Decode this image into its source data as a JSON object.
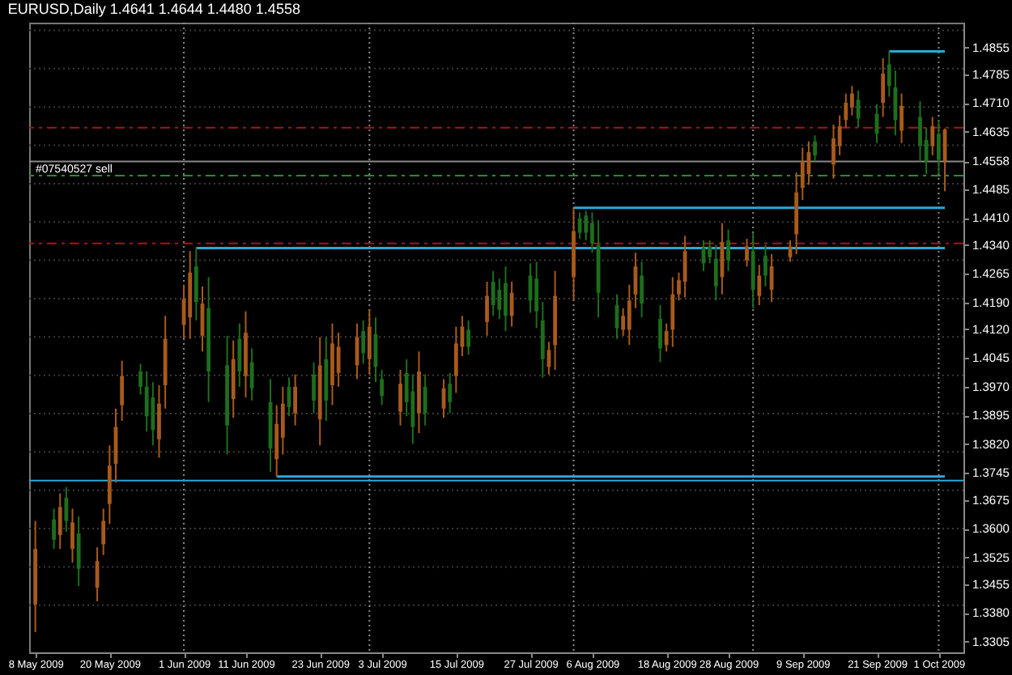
{
  "chart_data": {
    "type": "candlestick",
    "title": "EURUSD,Daily 1.4641 1.4644 1.4480 1.4558",
    "x": [
      "2009-05-08",
      "2009-05-11",
      "2009-05-12",
      "2009-05-13",
      "2009-05-14",
      "2009-05-15",
      "2009-05-18",
      "2009-05-19",
      "2009-05-20",
      "2009-05-21",
      "2009-05-22",
      "2009-05-25",
      "2009-05-26",
      "2009-05-27",
      "2009-05-28",
      "2009-05-29",
      "2009-06-01",
      "2009-06-02",
      "2009-06-03",
      "2009-06-04",
      "2009-06-05",
      "2009-06-08",
      "2009-06-09",
      "2009-06-10",
      "2009-06-11",
      "2009-06-12",
      "2009-06-15",
      "2009-06-16",
      "2009-06-17",
      "2009-06-18",
      "2009-06-19",
      "2009-06-22",
      "2009-06-23",
      "2009-06-24",
      "2009-06-25",
      "2009-06-26",
      "2009-06-29",
      "2009-06-30",
      "2009-07-01",
      "2009-07-02",
      "2009-07-03",
      "2009-07-06",
      "2009-07-07",
      "2009-07-08",
      "2009-07-09",
      "2009-07-10",
      "2009-07-13",
      "2009-07-14",
      "2009-07-15",
      "2009-07-16",
      "2009-07-17",
      "2009-07-20",
      "2009-07-21",
      "2009-07-22",
      "2009-07-23",
      "2009-07-24",
      "2009-07-27",
      "2009-07-28",
      "2009-07-29",
      "2009-07-30",
      "2009-07-31",
      "2009-08-03",
      "2009-08-04",
      "2009-08-05",
      "2009-08-06",
      "2009-08-07",
      "2009-08-10",
      "2009-08-11",
      "2009-08-12",
      "2009-08-13",
      "2009-08-14",
      "2009-08-17",
      "2009-08-18",
      "2009-08-19",
      "2009-08-20",
      "2009-08-21",
      "2009-08-24",
      "2009-08-25",
      "2009-08-26",
      "2009-08-27",
      "2009-08-28",
      "2009-08-31",
      "2009-09-01",
      "2009-09-02",
      "2009-09-03",
      "2009-09-04",
      "2009-09-07",
      "2009-09-08",
      "2009-09-09",
      "2009-09-10",
      "2009-09-11",
      "2009-09-14",
      "2009-09-15",
      "2009-09-16",
      "2009-09-17",
      "2009-09-18",
      "2009-09-21",
      "2009-09-22",
      "2009-09-23",
      "2009-09-24",
      "2009-09-25",
      "2009-09-28",
      "2009-09-29",
      "2009-09-30",
      "2009-10-01",
      "2009-10-02"
    ],
    "ohlc": [
      [
        1.3547,
        1.362,
        1.333,
        1.3402
      ],
      [
        1.3571,
        1.3652,
        1.3547,
        1.3624
      ],
      [
        1.3656,
        1.3692,
        1.3547,
        1.3583
      ],
      [
        1.362,
        1.3708,
        1.3591,
        1.368
      ],
      [
        1.3616,
        1.3652,
        1.3511,
        1.3547
      ],
      [
        1.3495,
        1.3632,
        1.345,
        1.3587
      ],
      [
        1.3515,
        1.3551,
        1.341,
        1.3446
      ],
      [
        1.362,
        1.3652,
        1.3531,
        1.3559
      ],
      [
        1.3764,
        1.3817,
        1.3612,
        1.3664
      ],
      [
        1.3865,
        1.3913,
        1.372,
        1.3769
      ],
      [
        1.3998,
        1.4038,
        1.3881,
        1.3922
      ],
      [
        1.397,
        1.403,
        1.395,
        1.401
      ],
      [
        1.3893,
        1.401,
        1.3853,
        1.397
      ],
      [
        1.3857,
        1.3982,
        1.3817,
        1.3942
      ],
      [
        1.3926,
        1.3974,
        1.3785,
        1.3833
      ],
      [
        1.4095,
        1.4155,
        1.3913,
        1.3974
      ],
      [
        1.4199,
        1.4236,
        1.4095,
        1.4131
      ],
      [
        1.4268,
        1.4324,
        1.4095,
        1.4151
      ],
      [
        1.4191,
        1.4332,
        1.4143,
        1.4284
      ],
      [
        1.4187,
        1.4232,
        1.4062,
        1.4103
      ],
      [
        1.401,
        1.4256,
        1.393,
        1.4175
      ],
      [
        1.3869,
        1.4103,
        1.3793,
        1.4026
      ],
      [
        1.4042,
        1.4091,
        1.3889,
        1.3938
      ],
      [
        1.401,
        1.4135,
        1.397,
        1.4095
      ],
      [
        1.4111,
        1.4167,
        1.3942,
        1.3998
      ],
      [
        1.3966,
        1.407,
        1.3934,
        1.4034
      ],
      [
        1.3809,
        1.399,
        1.3748,
        1.393
      ],
      [
        1.3873,
        1.3922,
        1.3736,
        1.3781
      ],
      [
        1.3926,
        1.397,
        1.3793,
        1.3837
      ],
      [
        1.3917,
        1.3994,
        1.3893,
        1.397
      ],
      [
        1.397,
        1.4002,
        1.3869,
        1.3901
      ],
      [
        1.3934,
        1.4034,
        1.3901,
        1.4002
      ],
      [
        1.4026,
        1.4099,
        1.3817,
        1.3885
      ],
      [
        1.3934,
        1.4099,
        1.3881,
        1.4042
      ],
      [
        1.4083,
        1.4135,
        1.3922,
        1.3974
      ],
      [
        1.4074,
        1.4111,
        1.397,
        1.4006
      ],
      [
        1.4099,
        1.4135,
        1.399,
        1.4026
      ],
      [
        1.4058,
        1.4143,
        1.403,
        1.4115
      ],
      [
        1.4127,
        1.4171,
        1.4002,
        1.4042
      ],
      [
        1.4022,
        1.4151,
        1.3982,
        1.4107
      ],
      [
        1.3946,
        1.4014,
        1.3922,
        1.399
      ],
      [
        1.3978,
        1.4014,
        1.3869,
        1.3905
      ],
      [
        1.393,
        1.4042,
        1.3893,
        1.4006
      ],
      [
        1.3865,
        1.4002,
        1.3821,
        1.3958
      ],
      [
        1.401,
        1.4062,
        1.3849,
        1.3901
      ],
      [
        1.3901,
        1.4002,
        1.3869,
        1.397
      ],
      [
        1.3966,
        1.399,
        1.3889,
        1.3913
      ],
      [
        1.393,
        1.4006,
        1.3901,
        1.3978
      ],
      [
        1.4083,
        1.4127,
        1.3954,
        1.3998
      ],
      [
        1.4127,
        1.4155,
        1.405,
        1.4074
      ],
      [
        1.4074,
        1.4143,
        1.4054,
        1.4119
      ],
      [
        1.4207,
        1.4244,
        1.4103,
        1.4139
      ],
      [
        1.4183,
        1.4272,
        1.4155,
        1.4244
      ],
      [
        1.4171,
        1.4252,
        1.4147,
        1.4223
      ],
      [
        1.4155,
        1.4284,
        1.4115,
        1.424
      ],
      [
        1.4215,
        1.4244,
        1.4127,
        1.4155
      ],
      [
        1.4195,
        1.4292,
        1.4163,
        1.426
      ],
      [
        1.4167,
        1.4296,
        1.4123,
        1.4252
      ],
      [
        1.4042,
        1.4191,
        1.3994,
        1.4143
      ],
      [
        1.4066,
        1.4087,
        1.4002,
        1.4022
      ],
      [
        1.4207,
        1.4272,
        1.4014,
        1.4079
      ],
      [
        1.4376,
        1.4437,
        1.4195,
        1.4256
      ],
      [
        1.4372,
        1.4425,
        1.4356,
        1.4409
      ],
      [
        1.4372,
        1.4429,
        1.4352,
        1.4417
      ],
      [
        1.4344,
        1.4425,
        1.432,
        1.4397
      ],
      [
        1.4215,
        1.4405,
        1.4151,
        1.434
      ],
      [
        1.4123,
        1.4211,
        1.4095,
        1.4183
      ],
      [
        1.4155,
        1.4175,
        1.4103,
        1.4119
      ],
      [
        1.4195,
        1.4236,
        1.4079,
        1.4119
      ],
      [
        1.4284,
        1.432,
        1.4175,
        1.4211
      ],
      [
        1.4187,
        1.4296,
        1.4151,
        1.426
      ],
      [
        1.407,
        1.4183,
        1.4034,
        1.4147
      ],
      [
        1.4115,
        1.4135,
        1.4062,
        1.4079
      ],
      [
        1.4211,
        1.4256,
        1.4074,
        1.4119
      ],
      [
        1.4248,
        1.4268,
        1.4195,
        1.4211
      ],
      [
        1.4324,
        1.4364,
        1.4203,
        1.4244
      ],
      [
        1.4292,
        1.4352,
        1.4272,
        1.4332
      ],
      [
        1.4308,
        1.4352,
        1.4292,
        1.4336
      ],
      [
        1.4232,
        1.434,
        1.4195,
        1.4304
      ],
      [
        1.4348,
        1.4397,
        1.4211,
        1.4256
      ],
      [
        1.43,
        1.438,
        1.4272,
        1.4352
      ],
      [
        1.4336,
        1.4356,
        1.4284,
        1.43
      ],
      [
        1.4223,
        1.4372,
        1.4175,
        1.4324
      ],
      [
        1.426,
        1.4288,
        1.4183,
        1.4207
      ],
      [
        1.426,
        1.434,
        1.4232,
        1.4312
      ],
      [
        1.4284,
        1.4316,
        1.4191,
        1.4223
      ],
      [
        1.4336,
        1.4352,
        1.4296,
        1.4308
      ],
      [
        1.4477,
        1.4529,
        1.4316,
        1.4368
      ],
      [
        1.4558,
        1.4594,
        1.4457,
        1.4489
      ],
      [
        1.4582,
        1.461,
        1.4497,
        1.4525
      ],
      [
        1.4574,
        1.4626,
        1.4558,
        1.461
      ],
      [
        1.4618,
        1.4654,
        1.4513,
        1.455
      ],
      [
        1.465,
        1.4678,
        1.4574,
        1.4598
      ],
      [
        1.4711,
        1.4735,
        1.4646,
        1.4666
      ],
      [
        1.4735,
        1.4755,
        1.4678,
        1.4699
      ],
      [
        1.467,
        1.4743,
        1.4646,
        1.4719
      ],
      [
        1.463,
        1.4707,
        1.4606,
        1.4682
      ],
      [
        1.4787,
        1.4827,
        1.4674,
        1.4711
      ],
      [
        1.4755,
        1.4845,
        1.4727,
        1.4811
      ],
      [
        1.4666,
        1.4795,
        1.4626,
        1.4751
      ],
      [
        1.4703,
        1.4735,
        1.4606,
        1.4638
      ],
      [
        1.4598,
        1.4715,
        1.4558,
        1.4674
      ],
      [
        1.4558,
        1.4646,
        1.4525,
        1.4614
      ],
      [
        1.465,
        1.4674,
        1.4574,
        1.4598
      ],
      [
        1.4562,
        1.4666,
        1.4525,
        1.463
      ],
      [
        1.4641,
        1.4644,
        1.448,
        1.4558
      ]
    ],
    "colors": [
      "#a85a1c",
      "#1d6e1d",
      "#a85a1c",
      "#1d6e1d",
      "#a85a1c",
      "#1d6e1d",
      "#a85a1c",
      "#a85a1c",
      "#a85a1c",
      "#a85a1c",
      "#a85a1c",
      "#1d6e1d",
      "#1d6e1d",
      "#1d6e1d",
      "#a85a1c",
      "#a85a1c",
      "#a85a1c",
      "#a85a1c",
      "#1d6e1d",
      "#a85a1c",
      "#1d6e1d",
      "#1d6e1d",
      "#a85a1c",
      "#1d6e1d",
      "#a85a1c",
      "#1d6e1d",
      "#1d6e1d",
      "#a85a1c",
      "#a85a1c",
      "#1d6e1d",
      "#a85a1c",
      "#1d6e1d",
      "#a85a1c",
      "#1d6e1d",
      "#a85a1c",
      "#a85a1c",
      "#a85a1c",
      "#1d6e1d",
      "#a85a1c",
      "#1d6e1d",
      "#1d6e1d",
      "#a85a1c",
      "#1d6e1d",
      "#1d6e1d",
      "#a85a1c",
      "#1d6e1d",
      "#a85a1c",
      "#1d6e1d",
      "#a85a1c",
      "#a85a1c",
      "#1d6e1d",
      "#a85a1c",
      "#1d6e1d",
      "#1d6e1d",
      "#1d6e1d",
      "#a85a1c",
      "#1d6e1d",
      "#1d6e1d",
      "#1d6e1d",
      "#a85a1c",
      "#a85a1c",
      "#a85a1c",
      "#1d6e1d",
      "#1d6e1d",
      "#1d6e1d",
      "#1d6e1d",
      "#1d6e1d",
      "#a85a1c",
      "#a85a1c",
      "#a85a1c",
      "#1d6e1d",
      "#1d6e1d",
      "#a85a1c",
      "#a85a1c",
      "#a85a1c",
      "#a85a1c",
      "#1d6e1d",
      "#1d6e1d",
      "#1d6e1d",
      "#a85a1c",
      "#1d6e1d",
      "#a85a1c",
      "#1d6e1d",
      "#a85a1c",
      "#1d6e1d",
      "#a85a1c",
      "#a85a1c",
      "#a85a1c",
      "#a85a1c",
      "#a85a1c",
      "#1d6e1d",
      "#a85a1c",
      "#a85a1c",
      "#a85a1c",
      "#a85a1c",
      "#1d6e1d",
      "#1d6e1d",
      "#a85a1c",
      "#1d6e1d",
      "#1d6e1d",
      "#a85a1c",
      "#1d6e1d",
      "#1d6e1d",
      "#a85a1c",
      "#1d6e1d",
      "#a85a1c"
    ],
    "series": [
      {
        "type": "line",
        "color": "#2aa8d8",
        "x": [
          "2009-09-23",
          "2009-10-02"
        ],
        "values": [
          1.4845,
          1.4845
        ]
      },
      {
        "type": "line",
        "color": "#2aa8d8",
        "x": [
          "2009-08-03",
          "2009-10-02"
        ],
        "values": [
          1.4437,
          1.4437
        ]
      },
      {
        "type": "line",
        "color": "#2aa8d8",
        "x": [
          "2009-06-03",
          "2009-10-02"
        ],
        "values": [
          1.4332,
          1.4332
        ]
      },
      {
        "type": "line",
        "color": "#2aa8d8",
        "x": [
          "2009-06-16",
          "2009-10-02"
        ],
        "values": [
          1.3736,
          1.3736
        ]
      }
    ],
    "ylim": [
      1.3277,
      1.492
    ],
    "yticks": [
      {
        "value": 1.4855,
        "label": "1.4855"
      },
      {
        "value": 1.4785,
        "label": "1.4785"
      },
      {
        "value": 1.471,
        "label": "1.4710"
      },
      {
        "value": 1.4635,
        "label": "1.4635"
      },
      {
        "value": 1.4558,
        "label": "1.4558"
      },
      {
        "value": 1.4485,
        "label": "1.4485"
      },
      {
        "value": 1.441,
        "label": "1.4410"
      },
      {
        "value": 1.434,
        "label": "1.4340"
      },
      {
        "value": 1.4265,
        "label": "1.4265"
      },
      {
        "value": 1.419,
        "label": "1.4190"
      },
      {
        "value": 1.412,
        "label": "1.4120"
      },
      {
        "value": 1.4045,
        "label": "1.4045"
      },
      {
        "value": 1.397,
        "label": "1.3970"
      },
      {
        "value": 1.3895,
        "label": "1.3895"
      },
      {
        "value": 1.382,
        "label": "1.3820"
      },
      {
        "value": 1.3745,
        "label": "1.3745"
      },
      {
        "value": 1.3675,
        "label": "1.3675"
      },
      {
        "value": 1.36,
        "label": "1.3600"
      },
      {
        "value": 1.3525,
        "label": "1.3525"
      },
      {
        "value": 1.3455,
        "label": "1.3455"
      },
      {
        "value": 1.338,
        "label": "1.3380"
      },
      {
        "value": 1.3305,
        "label": "1.3305"
      }
    ],
    "xlim": [
      "2009-05-07",
      "2009-10-05"
    ],
    "xticks": [
      {
        "value": "2009-05-08",
        "label": "8 May 2009"
      },
      {
        "value": "2009-05-20",
        "label": "20 May 2009"
      },
      {
        "value": "2009-06-01",
        "label": "1 Jun 2009"
      },
      {
        "value": "2009-06-11",
        "label": "11 Jun 2009"
      },
      {
        "value": "2009-06-23",
        "label": "23 Jun 2009"
      },
      {
        "value": "2009-07-03",
        "label": "3 Jul 2009"
      },
      {
        "value": "2009-07-15",
        "label": "15 Jul 2009"
      },
      {
        "value": "2009-07-27",
        "label": "27 Jul 2009"
      },
      {
        "value": "2009-08-06",
        "label": "6 Aug 2009"
      },
      {
        "value": "2009-08-18",
        "label": "18 Aug 2009"
      },
      {
        "value": "2009-08-28",
        "label": "28 Aug 2009"
      },
      {
        "value": "2009-09-09",
        "label": "9 Sep 2009"
      },
      {
        "value": "2009-09-21",
        "label": "21 Sep 2009"
      },
      {
        "value": "2009-10-01",
        "label": "1 Oct 2009"
      }
    ],
    "ref_lines": [
      {
        "axis": "y",
        "value": 1.49,
        "color": "#3a3a3a",
        "line_style": "dotted"
      },
      {
        "axis": "y",
        "value": 1.48,
        "color": "#3a3a3a",
        "line_style": "dotted"
      },
      {
        "axis": "y",
        "value": 1.47,
        "color": "#3a3a3a",
        "line_style": "dotted"
      },
      {
        "axis": "y",
        "value": 1.46,
        "color": "#3a3a3a",
        "line_style": "dotted"
      },
      {
        "axis": "y",
        "value": 1.45,
        "color": "#3a3a3a",
        "line_style": "dotted"
      },
      {
        "axis": "y",
        "value": 1.44,
        "color": "#3a3a3a",
        "line_style": "dotted"
      },
      {
        "axis": "y",
        "value": 1.43,
        "color": "#3a3a3a",
        "line_style": "dotted"
      },
      {
        "axis": "y",
        "value": 1.42,
        "color": "#3a3a3a",
        "line_style": "dotted"
      },
      {
        "axis": "y",
        "value": 1.41,
        "color": "#3a3a3a",
        "line_style": "dotted"
      },
      {
        "axis": "y",
        "value": 1.4,
        "color": "#3a3a3a",
        "line_style": "dotted"
      },
      {
        "axis": "y",
        "value": 1.39,
        "color": "#3a3a3a",
        "line_style": "dotted"
      },
      {
        "axis": "y",
        "value": 1.38,
        "color": "#3a3a3a",
        "line_style": "dotted"
      },
      {
        "axis": "y",
        "value": 1.37,
        "color": "#3a3a3a",
        "line_style": "dotted"
      },
      {
        "axis": "y",
        "value": 1.36,
        "color": "#3a3a3a",
        "line_style": "dotted"
      },
      {
        "axis": "y",
        "value": 1.35,
        "color": "#3a3a3a",
        "line_style": "dotted"
      },
      {
        "axis": "y",
        "value": 1.34,
        "color": "#3a3a3a",
        "line_style": "dotted"
      },
      {
        "axis": "x",
        "value": "2009-06-01",
        "color": "#8a8a8a",
        "line_style": "dotted"
      },
      {
        "axis": "x",
        "value": "2009-07-01",
        "color": "#8a8a8a",
        "line_style": "dotted"
      },
      {
        "axis": "x",
        "value": "2009-08-03",
        "color": "#8a8a8a",
        "line_style": "dotted"
      },
      {
        "axis": "x",
        "value": "2009-09-01",
        "color": "#8a8a8a",
        "line_style": "dotted"
      },
      {
        "axis": "x",
        "value": "2009-10-01",
        "color": "#8a8a8a",
        "line_style": "dotted"
      },
      {
        "axis": "y",
        "value": 1.4646,
        "color": "#a01818",
        "line_style": "dashed"
      },
      {
        "axis": "y",
        "value": 1.4344,
        "color": "#a01818",
        "line_style": "dashed"
      },
      {
        "axis": "y",
        "value": 1.4521,
        "color": "#2a8a2a",
        "line_style": "dashed",
        "label": "#07540527 sell"
      },
      {
        "axis": "y",
        "value": 1.4558,
        "color": "#8a8a8a",
        "line_style": "solid"
      },
      {
        "axis": "y",
        "value": 1.3725,
        "color": "#2aa8d8",
        "line_style": "solid"
      }
    ]
  }
}
